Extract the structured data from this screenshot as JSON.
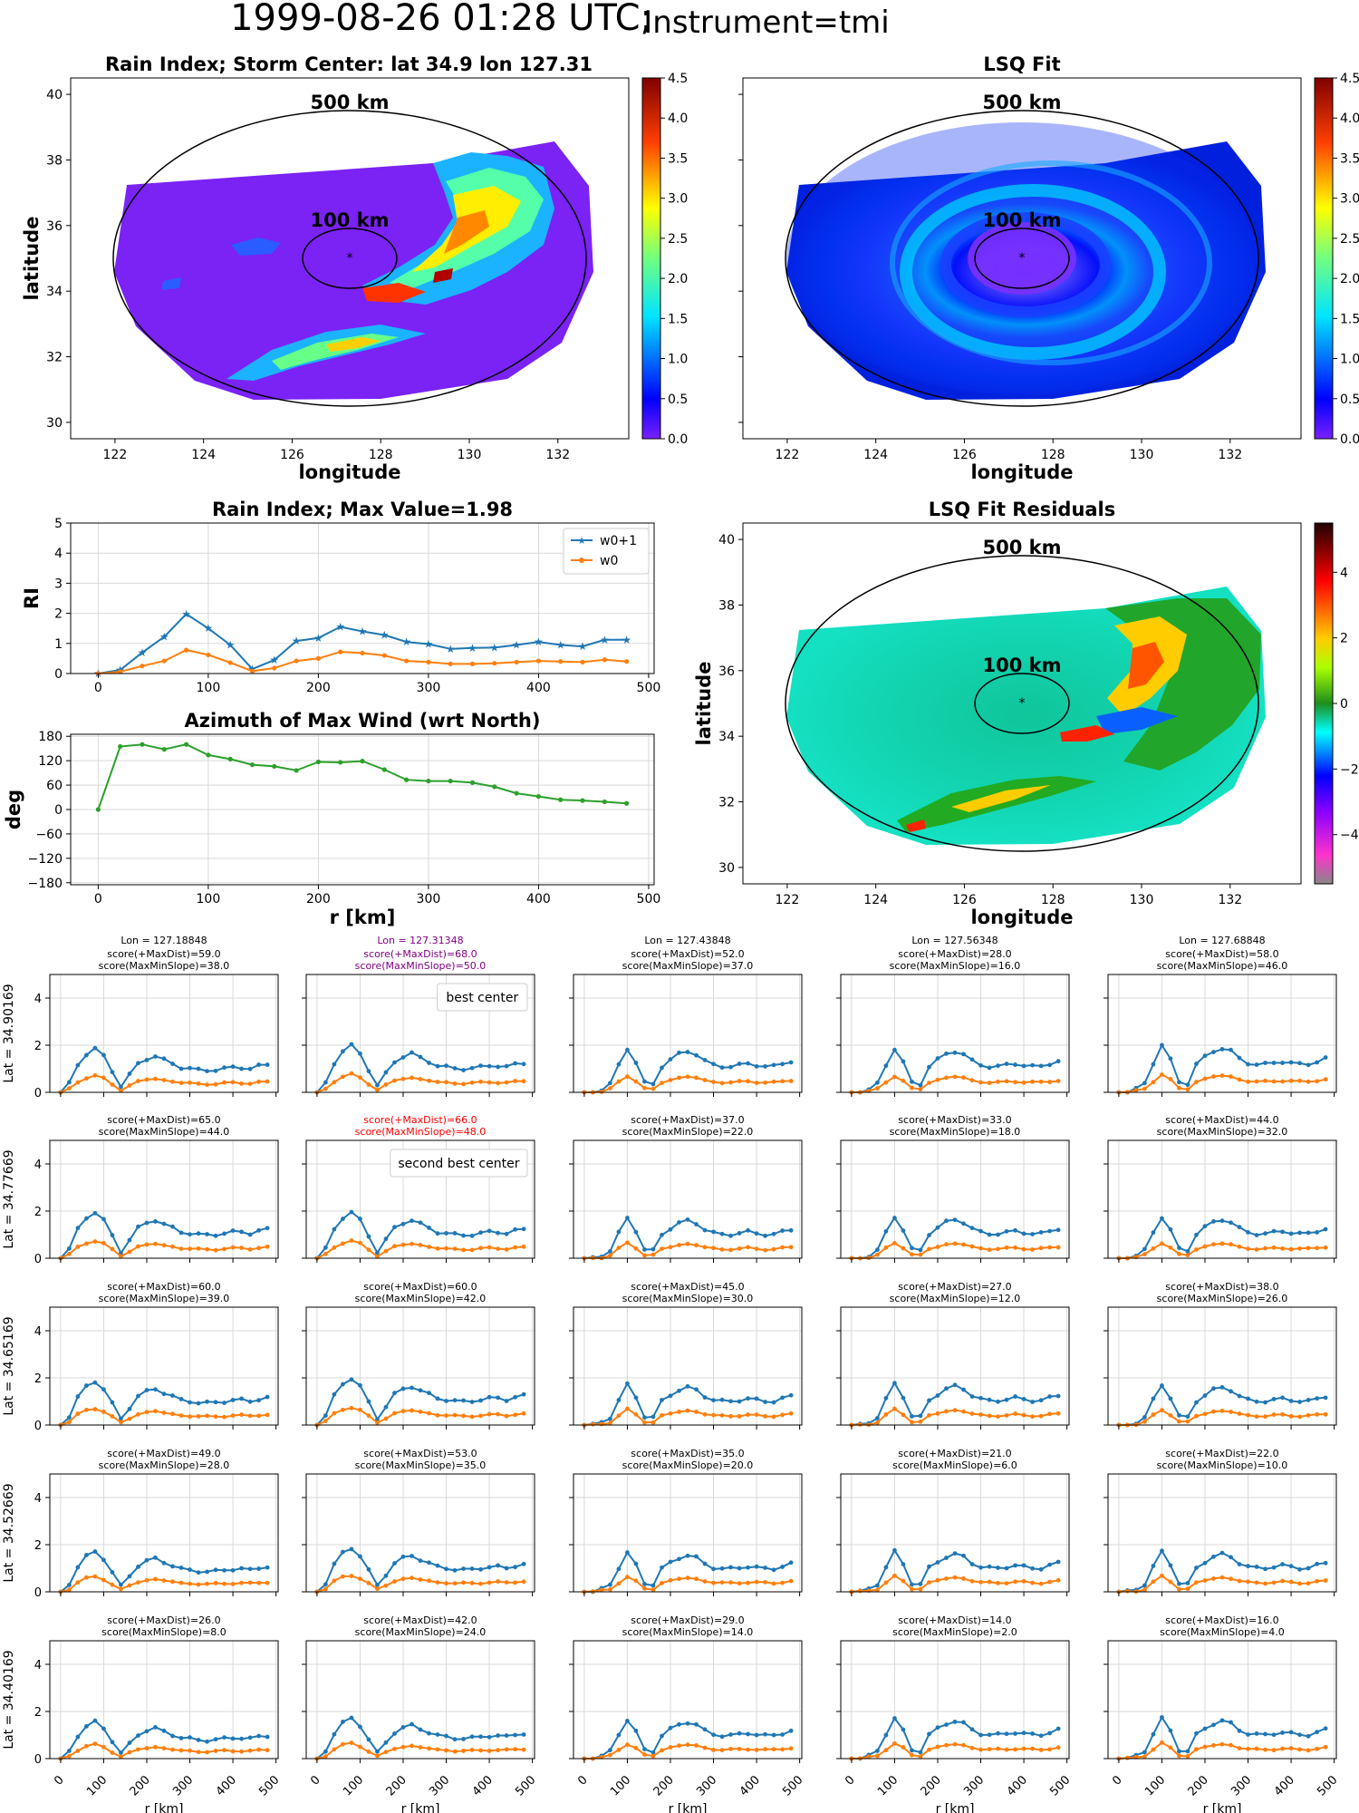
{
  "figure": {
    "title_date": "1999-08-26 01:28 UTC;",
    "title_instrument": "Instrument=tmi"
  },
  "maps": [
    {
      "title": "Rain Index; Storm Center: lat 34.9 lon 127.31",
      "xlabel": "longitude",
      "ylabel": "latitude",
      "xticks": [
        "122",
        "124",
        "126",
        "128",
        "130",
        "132"
      ],
      "yticks": [
        "30",
        "32",
        "34",
        "36",
        "38",
        "40"
      ],
      "ring_outer": "500 km",
      "ring_inner": "100 km",
      "colorbar_ticks": [
        "0.0",
        "0.5",
        "1.0",
        "1.5",
        "2.0",
        "2.5",
        "3.0",
        "3.5",
        "4.0",
        "4.5"
      ],
      "colormap": "jet",
      "center": [
        127.31,
        34.9
      ]
    },
    {
      "title": "LSQ Fit",
      "xlabel": "longitude",
      "ylabel": "",
      "xticks": [
        "122",
        "124",
        "126",
        "128",
        "130",
        "132"
      ],
      "yticks": [],
      "ring_outer": "500 km",
      "ring_inner": "100 km",
      "colorbar_ticks": [
        "0.0",
        "0.5",
        "1.0",
        "1.5",
        "2.0",
        "2.5",
        "3.0",
        "3.5",
        "4.0",
        "4.5"
      ],
      "colormap": "jet",
      "center": [
        127.31,
        34.9
      ]
    },
    {
      "title": "LSQ Fit Residuals",
      "xlabel": "longitude",
      "ylabel": "latitude",
      "xticks": [
        "122",
        "124",
        "126",
        "128",
        "130",
        "132"
      ],
      "yticks": [
        "30",
        "32",
        "34",
        "36",
        "38",
        "40"
      ],
      "ring_outer": "500 km",
      "ring_inner": "100 km",
      "colorbar_ticks": [
        "−4",
        "−2",
        "0",
        "2",
        "4"
      ],
      "colormap": "diverging",
      "center": [
        127.31,
        34.9
      ]
    }
  ],
  "chart_data": [
    {
      "type": "line",
      "title": "Rain Index; Max Value=1.98",
      "xlabel": "",
      "ylabel": "RI",
      "xlim": [
        -25,
        505
      ],
      "ylim": [
        0,
        5
      ],
      "xticks": [
        "0",
        "100",
        "200",
        "300",
        "400",
        "500"
      ],
      "yticks": [
        "0",
        "1",
        "2",
        "3",
        "4",
        "5"
      ],
      "grid": true,
      "legend": "top-right",
      "x": [
        0,
        20,
        40,
        60,
        80,
        100,
        120,
        140,
        160,
        180,
        200,
        220,
        240,
        260,
        280,
        300,
        320,
        340,
        360,
        380,
        400,
        420,
        440,
        460,
        480
      ],
      "series": [
        {
          "name": "w0+1",
          "color": "#1f77b4",
          "marker": "star",
          "values": [
            0.0,
            0.12,
            0.7,
            1.22,
            1.98,
            1.5,
            0.95,
            0.15,
            0.45,
            1.08,
            1.18,
            1.55,
            1.4,
            1.28,
            1.05,
            0.98,
            0.82,
            0.85,
            0.86,
            0.95,
            1.05,
            0.95,
            0.9,
            1.12,
            1.12
          ]
        },
        {
          "name": "w0",
          "color": "#ff7f0e",
          "marker": "dot",
          "values": [
            0.0,
            0.06,
            0.25,
            0.42,
            0.78,
            0.62,
            0.36,
            0.08,
            0.18,
            0.42,
            0.5,
            0.72,
            0.68,
            0.6,
            0.42,
            0.38,
            0.32,
            0.32,
            0.34,
            0.38,
            0.42,
            0.4,
            0.38,
            0.46,
            0.4
          ]
        }
      ]
    },
    {
      "type": "line",
      "title": "Azimuth of Max Wind (wrt North)",
      "xlabel": "r [km]",
      "ylabel": "deg",
      "xlim": [
        -25,
        505
      ],
      "ylim": [
        -185,
        185
      ],
      "xticks": [
        "0",
        "100",
        "200",
        "300",
        "400",
        "500"
      ],
      "yticks": [
        "−180",
        "−120",
        "−60",
        "0",
        "60",
        "120",
        "180"
      ],
      "grid": true,
      "x": [
        0,
        20,
        40,
        60,
        80,
        100,
        120,
        140,
        160,
        180,
        200,
        220,
        240,
        260,
        280,
        300,
        320,
        340,
        360,
        380,
        400,
        420,
        440,
        460,
        480
      ],
      "series": [
        {
          "color": "#2ca02c",
          "values": [
            0,
            155,
            160,
            148,
            160,
            134,
            124,
            110,
            106,
            96,
            117,
            116,
            119,
            98,
            73,
            70,
            70,
            66,
            56,
            40,
            32,
            24,
            22,
            19,
            15
          ]
        }
      ]
    },
    {
      "type": "line",
      "small_multiples": true,
      "rows": 5,
      "cols": 5,
      "xlabel": "r [km]",
      "xlim": [
        -25,
        505
      ],
      "ylim": [
        0,
        5
      ],
      "xticks": [
        "0",
        "100",
        "200",
        "300",
        "400",
        "500"
      ],
      "yticks": [
        "0",
        "2",
        "4"
      ],
      "row_labels": [
        "Lat = 34.90169",
        "Lat = 34.77669",
        "Lat = 34.65169",
        "Lat = 34.52669",
        "Lat = 34.40169"
      ],
      "col_lon_titles": [
        "Lon = 127.18848",
        "Lon = 127.31348",
        "Lon = 127.43848",
        "Lon = 127.56348",
        "Lon = 127.68848"
      ],
      "grid": true,
      "panels": [
        {
          "row": 0,
          "col": 0,
          "l1": "score(+MaxDist)=59.0",
          "l2": "score(MaxMinSlope)=38.0",
          "color": "#000000",
          "peak": 1,
          "amp": 1.85
        },
        {
          "row": 0,
          "col": 1,
          "l1": "score(+MaxDist)=68.0",
          "l2": "score(MaxMinSlope)=50.0",
          "color": "#800080",
          "peak": 1,
          "amp": 1.98,
          "note": "best center"
        },
        {
          "row": 0,
          "col": 2,
          "l1": "score(+MaxDist)=52.0",
          "l2": "score(MaxMinSlope)=37.0",
          "color": "#000000",
          "peak": 2,
          "amp": 1.85
        },
        {
          "row": 0,
          "col": 3,
          "l1": "score(+MaxDist)=28.0",
          "l2": "score(MaxMinSlope)=16.0",
          "color": "#000000",
          "peak": 2,
          "amp": 1.85
        },
        {
          "row": 0,
          "col": 4,
          "l1": "score(+MaxDist)=58.0",
          "l2": "score(MaxMinSlope)=46.0",
          "color": "#000000",
          "peak": 2,
          "amp": 2.0
        },
        {
          "row": 1,
          "col": 0,
          "l1": "score(+MaxDist)=65.0",
          "l2": "score(MaxMinSlope)=44.0",
          "color": "#000000",
          "peak": 1,
          "amp": 1.95
        },
        {
          "row": 1,
          "col": 1,
          "l1": "score(+MaxDist)=66.0",
          "l2": "score(MaxMinSlope)=48.0",
          "color": "#ff0000",
          "peak": 1,
          "amp": 1.95,
          "note": "second best center"
        },
        {
          "row": 1,
          "col": 2,
          "l1": "score(+MaxDist)=37.0",
          "l2": "score(MaxMinSlope)=22.0",
          "color": "#000000",
          "peak": 2,
          "amp": 1.7
        },
        {
          "row": 1,
          "col": 3,
          "l1": "score(+MaxDist)=33.0",
          "l2": "score(MaxMinSlope)=18.0",
          "color": "#000000",
          "peak": 2,
          "amp": 1.75
        },
        {
          "row": 1,
          "col": 4,
          "l1": "score(+MaxDist)=44.0",
          "l2": "score(MaxMinSlope)=32.0",
          "color": "#000000",
          "peak": 2,
          "amp": 1.75
        },
        {
          "row": 2,
          "col": 0,
          "l1": "score(+MaxDist)=60.0",
          "l2": "score(MaxMinSlope)=39.0",
          "color": "#000000",
          "peak": 1,
          "amp": 1.85
        },
        {
          "row": 2,
          "col": 1,
          "l1": "score(+MaxDist)=60.0",
          "l2": "score(MaxMinSlope)=42.0",
          "color": "#000000",
          "peak": 1,
          "amp": 1.98
        },
        {
          "row": 2,
          "col": 2,
          "l1": "score(+MaxDist)=45.0",
          "l2": "score(MaxMinSlope)=30.0",
          "color": "#000000",
          "peak": 2,
          "amp": 1.7
        },
        {
          "row": 2,
          "col": 3,
          "l1": "score(+MaxDist)=27.0",
          "l2": "score(MaxMinSlope)=12.0",
          "color": "#000000",
          "peak": 2,
          "amp": 1.75
        },
        {
          "row": 2,
          "col": 4,
          "l1": "score(+MaxDist)=38.0",
          "l2": "score(MaxMinSlope)=26.0",
          "color": "#000000",
          "peak": 2,
          "amp": 1.7
        },
        {
          "row": 3,
          "col": 0,
          "l1": "score(+MaxDist)=49.0",
          "l2": "score(MaxMinSlope)=28.0",
          "color": "#000000",
          "peak": 1,
          "amp": 1.7
        },
        {
          "row": 3,
          "col": 1,
          "l1": "score(+MaxDist)=53.0",
          "l2": "score(MaxMinSlope)=35.0",
          "color": "#000000",
          "peak": 1,
          "amp": 1.85
        },
        {
          "row": 3,
          "col": 2,
          "l1": "score(+MaxDist)=35.0",
          "l2": "score(MaxMinSlope)=20.0",
          "color": "#000000",
          "peak": 2,
          "amp": 1.65
        },
        {
          "row": 3,
          "col": 3,
          "l1": "score(+MaxDist)=21.0",
          "l2": "score(MaxMinSlope)=6.0",
          "color": "#000000",
          "peak": 2,
          "amp": 1.7
        },
        {
          "row": 3,
          "col": 4,
          "l1": "score(+MaxDist)=22.0",
          "l2": "score(MaxMinSlope)=10.0",
          "color": "#000000",
          "peak": 2,
          "amp": 1.7
        },
        {
          "row": 4,
          "col": 0,
          "l1": "score(+MaxDist)=26.0",
          "l2": "score(MaxMinSlope)=8.0",
          "color": "#000000",
          "peak": 1,
          "amp": 1.55
        },
        {
          "row": 4,
          "col": 1,
          "l1": "score(+MaxDist)=42.0",
          "l2": "score(MaxMinSlope)=24.0",
          "color": "#000000",
          "peak": 1,
          "amp": 1.7
        },
        {
          "row": 4,
          "col": 2,
          "l1": "score(+MaxDist)=29.0",
          "l2": "score(MaxMinSlope)=14.0",
          "color": "#000000",
          "peak": 2,
          "amp": 1.65
        },
        {
          "row": 4,
          "col": 3,
          "l1": "score(+MaxDist)=14.0",
          "l2": "score(MaxMinSlope)=2.0",
          "color": "#000000",
          "peak": 2,
          "amp": 1.7
        },
        {
          "row": 4,
          "col": 4,
          "l1": "score(+MaxDist)=16.0",
          "l2": "score(MaxMinSlope)=4.0",
          "color": "#000000",
          "peak": 2,
          "amp": 1.7
        }
      ]
    }
  ]
}
